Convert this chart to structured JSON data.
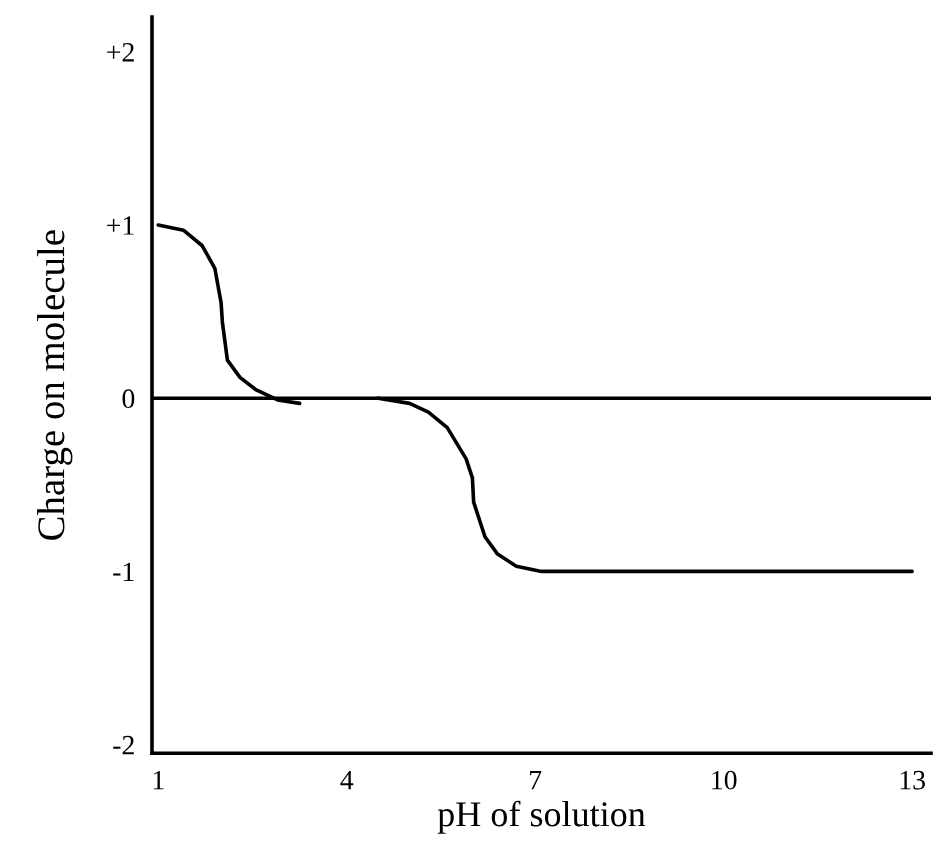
{
  "chart_data": {
    "type": "line",
    "xlabel": "pH of solution",
    "ylabel": "Charge on molecule",
    "xlim": [
      0.9,
      13.3
    ],
    "ylim": [
      -2.05,
      2.2
    ],
    "xticks": [
      1,
      4,
      7,
      10,
      13
    ],
    "yticks": [
      {
        "value": 2,
        "label": "+2"
      },
      {
        "value": 1,
        "label": "+1"
      },
      0,
      -1,
      -2
    ],
    "series": [
      {
        "color": "#000000",
        "x": [
          1.0,
          1.4,
          1.7,
          1.9,
          2.0,
          2.02,
          2.1,
          2.3,
          2.55,
          2.9,
          3.25
        ],
        "values": [
          1.0,
          0.97,
          0.88,
          0.75,
          0.55,
          0.44,
          0.22,
          0.12,
          0.05,
          -0.01,
          -0.03
        ]
      },
      {
        "color": "#000000",
        "x": [
          4.5,
          5.0,
          5.3,
          5.6,
          5.9,
          6.0,
          6.02,
          6.2,
          6.4,
          6.7,
          7.1,
          13.0
        ],
        "values": [
          0.0,
          -0.03,
          -0.08,
          -0.17,
          -0.35,
          -0.46,
          -0.6,
          -0.8,
          -0.9,
          -0.97,
          -1.0,
          -1.0
        ]
      }
    ],
    "ref_lines": [
      {
        "axis": "y",
        "value": 0,
        "color": "#000000"
      }
    ],
    "grid": false,
    "legend": false,
    "marker": "none",
    "line_style": "solid"
  }
}
